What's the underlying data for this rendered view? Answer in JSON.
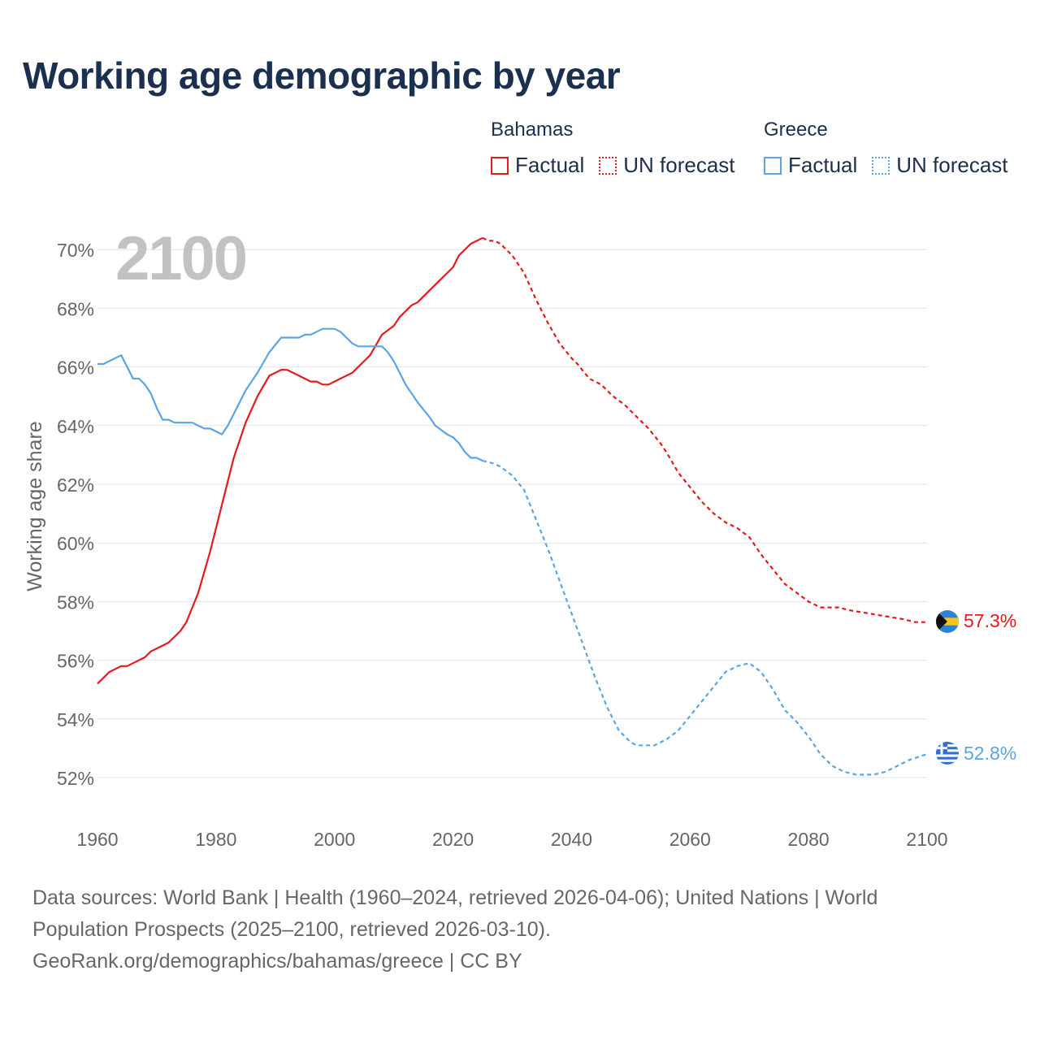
{
  "title": "Working age demographic by year",
  "legend": {
    "groups": [
      {
        "country": "Bahamas",
        "color": "#e41a1c",
        "factual_label": "Factual",
        "forecast_label": "UN forecast"
      },
      {
        "country": "Greece",
        "color": "#5aa5e6",
        "factual_label": "Factual",
        "forecast_label": "UN forecast"
      }
    ]
  },
  "source": {
    "line1": "Data sources: World Bank | Health (1960–2024, retrieved 2026-04-06); United Nations | World",
    "line2": "Population Prospects (2025–2100, retrieved 2026-03-10).",
    "line3": "GeoRank.org/demographics/bahamas/greece | CC BY"
  },
  "chart_data": {
    "type": "line",
    "year_label": "2100",
    "ylabel": "Working age share",
    "xlim": [
      1960,
      2100
    ],
    "ylim": [
      51,
      71
    ],
    "x_ticks": [
      1960,
      1980,
      2000,
      2020,
      2040,
      2060,
      2080,
      2100
    ],
    "y_ticks": [
      52,
      54,
      56,
      58,
      60,
      62,
      64,
      66,
      68,
      70
    ],
    "y_tick_labels": [
      "52%",
      "54%",
      "56%",
      "58%",
      "60%",
      "62%",
      "64%",
      "66%",
      "68%",
      "70%"
    ],
    "forecast_start": 2025,
    "series": [
      {
        "name": "Bahamas",
        "color": "#e41a1c",
        "end_label": "57.3%",
        "flag": "bahamas-flag",
        "points": [
          [
            1960,
            55.2
          ],
          [
            1962,
            55.6
          ],
          [
            1964,
            55.8
          ],
          [
            1965,
            55.8
          ],
          [
            1966,
            55.9
          ],
          [
            1968,
            56.1
          ],
          [
            1969,
            56.3
          ],
          [
            1971,
            56.5
          ],
          [
            1972,
            56.6
          ],
          [
            1974,
            57.0
          ],
          [
            1975,
            57.3
          ],
          [
            1977,
            58.3
          ],
          [
            1979,
            59.7
          ],
          [
            1981,
            61.3
          ],
          [
            1983,
            62.9
          ],
          [
            1985,
            64.1
          ],
          [
            1987,
            65.0
          ],
          [
            1989,
            65.7
          ],
          [
            1991,
            65.9
          ],
          [
            1992,
            65.9
          ],
          [
            1994,
            65.7
          ],
          [
            1996,
            65.5
          ],
          [
            1997,
            65.5
          ],
          [
            1998,
            65.4
          ],
          [
            1999,
            65.4
          ],
          [
            2000,
            65.5
          ],
          [
            2002,
            65.7
          ],
          [
            2003,
            65.8
          ],
          [
            2005,
            66.2
          ],
          [
            2006,
            66.4
          ],
          [
            2008,
            67.1
          ],
          [
            2010,
            67.4
          ],
          [
            2011,
            67.7
          ],
          [
            2013,
            68.1
          ],
          [
            2014,
            68.2
          ],
          [
            2016,
            68.6
          ],
          [
            2018,
            69.0
          ],
          [
            2019,
            69.2
          ],
          [
            2020,
            69.4
          ],
          [
            2021,
            69.8
          ],
          [
            2023,
            70.2
          ],
          [
            2025,
            70.4
          ],
          [
            2026,
            70.3
          ],
          [
            2027,
            70.3
          ],
          [
            2028,
            70.2
          ],
          [
            2030,
            69.8
          ],
          [
            2032,
            69.2
          ],
          [
            2034,
            68.3
          ],
          [
            2036,
            67.5
          ],
          [
            2038,
            66.8
          ],
          [
            2040,
            66.3
          ],
          [
            2041,
            66.1
          ],
          [
            2043,
            65.6
          ],
          [
            2045,
            65.4
          ],
          [
            2047,
            65.0
          ],
          [
            2049,
            64.7
          ],
          [
            2051,
            64.3
          ],
          [
            2053,
            63.9
          ],
          [
            2055,
            63.4
          ],
          [
            2056,
            63.1
          ],
          [
            2058,
            62.4
          ],
          [
            2060,
            61.9
          ],
          [
            2062,
            61.4
          ],
          [
            2064,
            61.0
          ],
          [
            2066,
            60.7
          ],
          [
            2068,
            60.5
          ],
          [
            2070,
            60.2
          ],
          [
            2072,
            59.6
          ],
          [
            2074,
            59.1
          ],
          [
            2076,
            58.6
          ],
          [
            2078,
            58.3
          ],
          [
            2080,
            58.0
          ],
          [
            2082,
            57.8
          ],
          [
            2085,
            57.8
          ],
          [
            2087,
            57.7
          ],
          [
            2090,
            57.6
          ],
          [
            2093,
            57.5
          ],
          [
            2096,
            57.4
          ],
          [
            2098,
            57.3
          ],
          [
            2100,
            57.3
          ]
        ]
      },
      {
        "name": "Greece",
        "color": "#5aa5e6",
        "end_label": "52.8%",
        "flag": "greece-flag",
        "points": [
          [
            1960,
            66.1
          ],
          [
            1961,
            66.1
          ],
          [
            1964,
            66.4
          ],
          [
            1966,
            65.6
          ],
          [
            1967,
            65.6
          ],
          [
            1968,
            65.4
          ],
          [
            1969,
            65.1
          ],
          [
            1970,
            64.6
          ],
          [
            1971,
            64.2
          ],
          [
            1972,
            64.2
          ],
          [
            1973,
            64.1
          ],
          [
            1976,
            64.1
          ],
          [
            1978,
            63.9
          ],
          [
            1979,
            63.9
          ],
          [
            1981,
            63.7
          ],
          [
            1982,
            64.0
          ],
          [
            1983,
            64.4
          ],
          [
            1985,
            65.2
          ],
          [
            1987,
            65.8
          ],
          [
            1989,
            66.5
          ],
          [
            1991,
            67.0
          ],
          [
            1994,
            67.0
          ],
          [
            1995,
            67.1
          ],
          [
            1996,
            67.1
          ],
          [
            1997,
            67.2
          ],
          [
            1998,
            67.3
          ],
          [
            2000,
            67.3
          ],
          [
            2001,
            67.2
          ],
          [
            2003,
            66.8
          ],
          [
            2004,
            66.7
          ],
          [
            2008,
            66.7
          ],
          [
            2009,
            66.5
          ],
          [
            2010,
            66.2
          ],
          [
            2012,
            65.4
          ],
          [
            2014,
            64.8
          ],
          [
            2016,
            64.3
          ],
          [
            2017,
            64.0
          ],
          [
            2019,
            63.7
          ],
          [
            2020,
            63.6
          ],
          [
            2021,
            63.4
          ],
          [
            2022,
            63.1
          ],
          [
            2023,
            62.9
          ],
          [
            2024,
            62.9
          ],
          [
            2025,
            62.8
          ],
          [
            2027,
            62.7
          ],
          [
            2028,
            62.6
          ],
          [
            2030,
            62.3
          ],
          [
            2032,
            61.8
          ],
          [
            2034,
            60.8
          ],
          [
            2036,
            59.8
          ],
          [
            2038,
            58.7
          ],
          [
            2040,
            57.6
          ],
          [
            2042,
            56.5
          ],
          [
            2044,
            55.4
          ],
          [
            2046,
            54.4
          ],
          [
            2048,
            53.6
          ],
          [
            2050,
            53.2
          ],
          [
            2051,
            53.1
          ],
          [
            2054,
            53.1
          ],
          [
            2056,
            53.3
          ],
          [
            2058,
            53.6
          ],
          [
            2060,
            54.1
          ],
          [
            2062,
            54.6
          ],
          [
            2064,
            55.1
          ],
          [
            2066,
            55.6
          ],
          [
            2068,
            55.8
          ],
          [
            2070,
            55.9
          ],
          [
            2072,
            55.6
          ],
          [
            2074,
            55.0
          ],
          [
            2076,
            54.3
          ],
          [
            2078,
            53.9
          ],
          [
            2080,
            53.4
          ],
          [
            2082,
            52.8
          ],
          [
            2084,
            52.4
          ],
          [
            2086,
            52.2
          ],
          [
            2088,
            52.1
          ],
          [
            2091,
            52.1
          ],
          [
            2093,
            52.2
          ],
          [
            2095,
            52.4
          ],
          [
            2097,
            52.6
          ],
          [
            2100,
            52.8
          ]
        ]
      }
    ]
  }
}
